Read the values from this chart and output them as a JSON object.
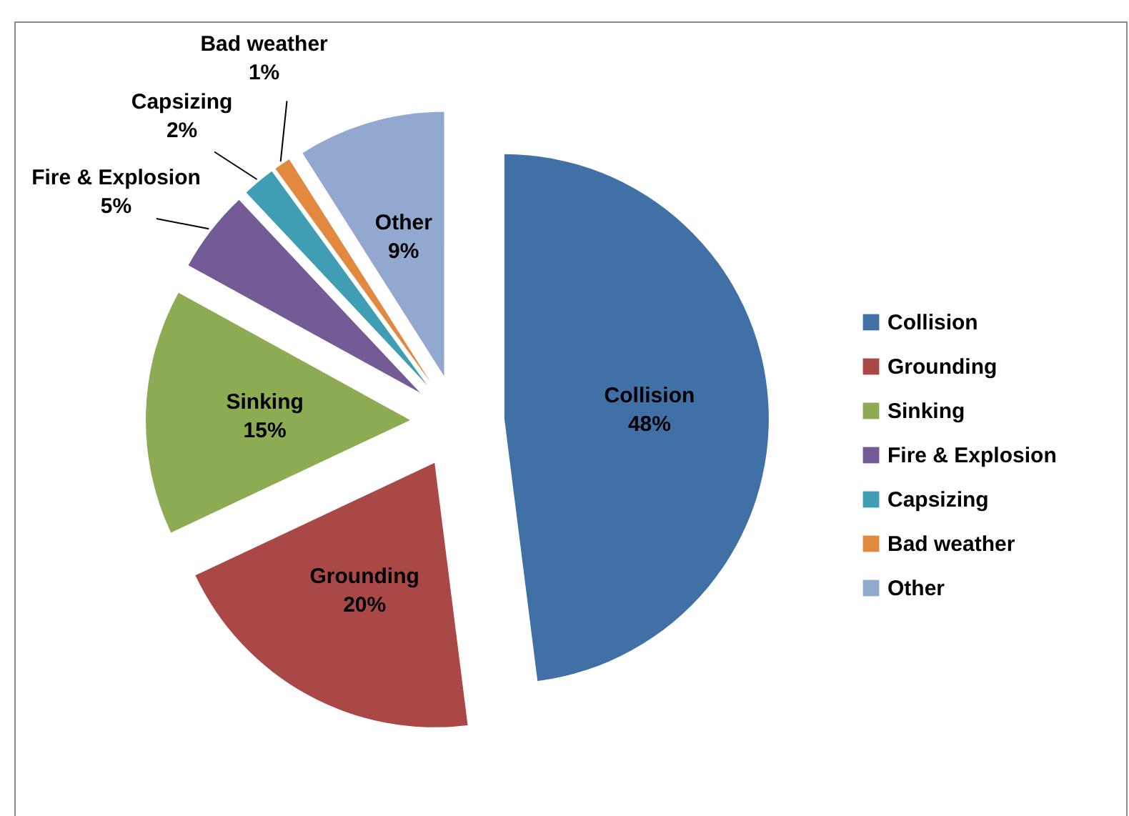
{
  "chart_data": {
    "type": "pie",
    "categories": [
      "Collision",
      "Grounding",
      "Sinking",
      "Fire & Explosion",
      "Capsizing",
      "Bad weather",
      "Other"
    ],
    "values": [
      48,
      20,
      15,
      5,
      2,
      1,
      9
    ],
    "value_labels": [
      "48%",
      "20%",
      "15%",
      "5%",
      "2%",
      "1%",
      "9%"
    ],
    "colors": [
      "#4170a6",
      "#a94846",
      "#8dab52",
      "#735c96",
      "#3f9db4",
      "#e3883f",
      "#93a8cf"
    ],
    "legend": "right"
  }
}
